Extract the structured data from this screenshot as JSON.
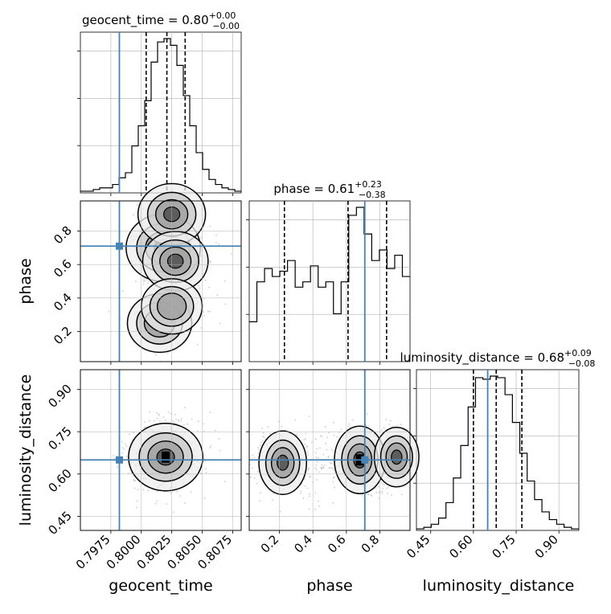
{
  "chart_data": {
    "type": "corner",
    "parameters": [
      "geocent_time",
      "phase",
      "luminosity_distance"
    ],
    "truths": {
      "geocent_time": 0.7982,
      "phase": 0.71,
      "luminosity_distance": 0.65
    },
    "titles": {
      "geocent_time": {
        "name": "geocent_time",
        "median": "0.80",
        "plus": "+0.00",
        "minus": "−0.00"
      },
      "phase": {
        "name": "phase",
        "median": "0.61",
        "plus": "+0.23",
        "minus": "−0.38"
      },
      "luminosity_distance": {
        "name": "luminosity_distance",
        "median": "0.68",
        "plus": "+0.09",
        "minus": "−0.08"
      }
    },
    "axes": {
      "geocent_time": {
        "range": [
          0.795,
          0.8082
        ],
        "ticks": [
          0.7975,
          0.8,
          0.8025,
          0.805,
          0.8075
        ],
        "tick_labels": [
          "0.7975",
          "0.8000",
          "0.8025",
          "0.8050",
          "0.8075"
        ],
        "label": "geocent_time"
      },
      "phase": {
        "range": [
          0.02,
          0.98
        ],
        "ticks": [
          0.2,
          0.4,
          0.6,
          0.8
        ],
        "tick_labels": [
          "0.2",
          "0.4",
          "0.6",
          "0.8"
        ],
        "label": "phase"
      },
      "luminosity_distance": {
        "range": [
          0.4,
          0.97
        ],
        "ticks": [
          0.45,
          0.6,
          0.75,
          0.9
        ],
        "tick_labels": [
          "0.45",
          "0.60",
          "0.75",
          "0.90"
        ],
        "label": "luminosity_distance"
      }
    },
    "histograms": {
      "geocent_time": {
        "range": [
          0.795,
          0.8082
        ],
        "counts": [
          1,
          1,
          2,
          3,
          3,
          5,
          9,
          12,
          28,
          40,
          55,
          78,
          90,
          92,
          88,
          76,
          58,
          40,
          24,
          14,
          8,
          5,
          3,
          2,
          1
        ],
        "quantiles": [
          0.8004,
          0.8021,
          0.8036
        ]
      },
      "phase": {
        "range": [
          0.02,
          0.98
        ],
        "counts": [
          15,
          30,
          35,
          32,
          34,
          38,
          28,
          30,
          36,
          28,
          30,
          18,
          30,
          55,
          58,
          48,
          38,
          42,
          35,
          40,
          32
        ],
        "quantiles": [
          0.23,
          0.61,
          0.84
        ]
      },
      "luminosity_distance": {
        "range": [
          0.4,
          0.97
        ],
        "counts": [
          1,
          2,
          4,
          8,
          18,
          34,
          55,
          80,
          99,
          98,
          100,
          99,
          88,
          70,
          50,
          32,
          20,
          12,
          7,
          4,
          2,
          1
        ],
        "quantiles": [
          0.6,
          0.68,
          0.77
        ]
      }
    },
    "density_2d": {
      "phase_vs_geocent_time": {
        "modes": [
          {
            "x": 0.8018,
            "y": 0.7,
            "peak": 1.0
          },
          {
            "x": 0.8025,
            "y": 0.9,
            "peak": 0.7
          },
          {
            "x": 0.8028,
            "y": 0.62,
            "peak": 0.6
          },
          {
            "x": 0.8015,
            "y": 0.25,
            "peak": 0.55
          },
          {
            "x": 0.8025,
            "y": 0.35,
            "peak": 0.4
          }
        ]
      },
      "luminosity_distance_vs_geocent_time": {
        "modes": [
          {
            "x": 0.802,
            "y": 0.66,
            "peak": 1.0
          }
        ]
      },
      "luminosity_distance_vs_phase": {
        "modes": [
          {
            "x": 0.22,
            "y": 0.64,
            "peak": 0.8
          },
          {
            "x": 0.68,
            "y": 0.65,
            "peak": 1.0
          },
          {
            "x": 0.9,
            "y": 0.66,
            "peak": 0.6
          }
        ]
      }
    }
  }
}
